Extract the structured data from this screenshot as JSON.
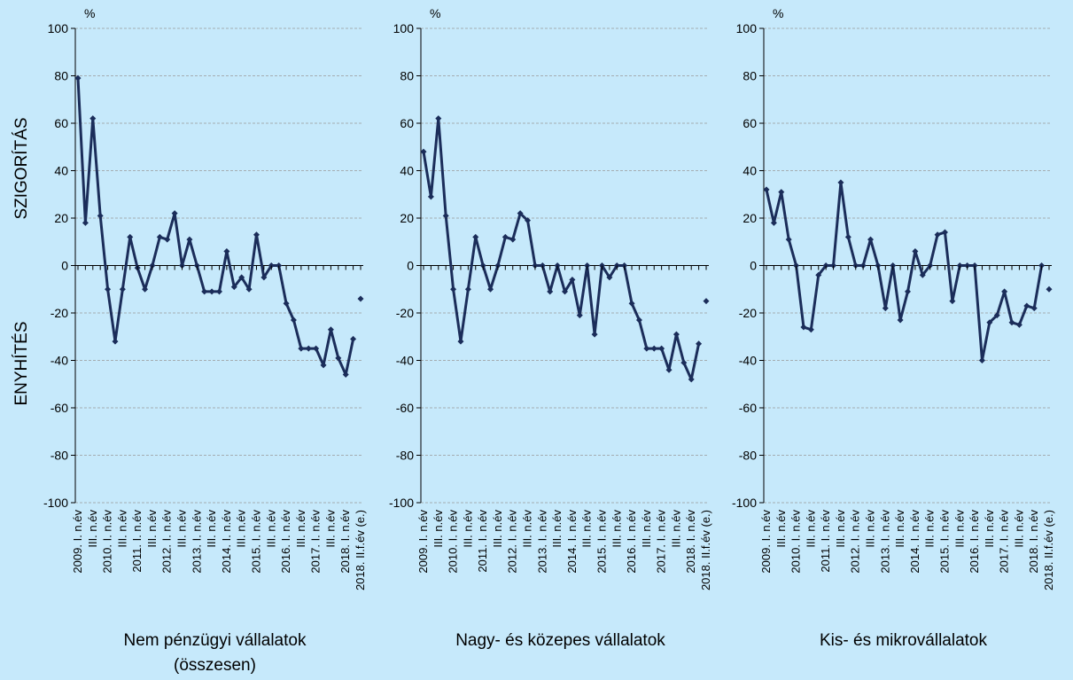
{
  "chart_data": [
    {
      "type": "line",
      "title": [
        "Nem pénzügyi vállalatok",
        "(összesen)"
      ],
      "unit": "%",
      "ylabel_top": "SZIGORÍTÁS",
      "ylabel_bottom": "ENYHÍTÉS",
      "categories": [
        "2009. I. n.év",
        null,
        "III. n.év",
        null,
        "2010. I. n.év",
        null,
        "III. n.év",
        null,
        "2011. I. n.év",
        null,
        "III. n.év",
        null,
        "2012. I. n.év",
        null,
        "III. n.év",
        null,
        "2013. I. n.év",
        null,
        "III. n.év",
        null,
        "2014. I. n.év",
        null,
        "III. n.év",
        null,
        "2015. I. n.év",
        null,
        "III. n.év",
        null,
        "2016. I. n.év",
        null,
        "III. n.év",
        null,
        "2017. I. n.év",
        null,
        "III. n.év",
        null,
        "2018. I. n.év",
        null,
        "2018. II.f.év (e.)"
      ],
      "series": [
        {
          "color": "#1b2d5a",
          "line": true,
          "values": [
            79,
            18,
            62,
            21,
            -10,
            -32,
            -10,
            12,
            -1,
            -10,
            0,
            12,
            11,
            22,
            0,
            11,
            0,
            -11,
            -11,
            -11,
            6,
            -9,
            -5,
            -10,
            13,
            -5,
            0,
            0,
            -16,
            -23,
            -35,
            -35,
            -35,
            -42,
            -27,
            -39,
            -46,
            -31,
            null
          ]
        },
        {
          "color": "#1b2d5a",
          "line": false,
          "values": [
            null,
            null,
            null,
            null,
            null,
            null,
            null,
            null,
            null,
            null,
            null,
            null,
            null,
            null,
            null,
            null,
            null,
            null,
            null,
            null,
            null,
            null,
            null,
            null,
            null,
            null,
            null,
            null,
            null,
            null,
            null,
            null,
            null,
            null,
            null,
            null,
            null,
            null,
            -14
          ]
        }
      ],
      "ylim": [
        -100,
        100
      ],
      "yticks": [
        -100,
        -80,
        -60,
        -40,
        -20,
        0,
        20,
        40,
        60,
        80,
        100
      ],
      "grid": true
    },
    {
      "type": "line",
      "title": [
        "Nagy- és közepes vállalatok"
      ],
      "unit": "%",
      "categories": [
        "2009. I. n.év",
        null,
        "III. n.év",
        null,
        "2010. I. n.év",
        null,
        "III. n.év",
        null,
        "2011. I. n.év",
        null,
        "III. n.év",
        null,
        "2012. I. n.év",
        null,
        "III. n.év",
        null,
        "2013. I. n.év",
        null,
        "III. n.év",
        null,
        "2014. I. n.év",
        null,
        "III. n.év",
        null,
        "2015. I. n.év",
        null,
        "III. n.év",
        null,
        "2016. I. n.év",
        null,
        "III. n.év",
        null,
        "2017. I. n.év",
        null,
        "III. n.év",
        null,
        "2018. I. n.év",
        null,
        "2018. II.f.év (e.)"
      ],
      "series": [
        {
          "color": "#1b2d5a",
          "line": true,
          "values": [
            48,
            29,
            62,
            21,
            -10,
            -32,
            -10,
            12,
            0,
            -10,
            0,
            12,
            11,
            22,
            19,
            0,
            0,
            -11,
            0,
            -11,
            -6,
            -21,
            0,
            -29,
            0,
            -5,
            0,
            0,
            -16,
            -23,
            -35,
            -35,
            -35,
            -44,
            -29,
            -41,
            -48,
            -33,
            null
          ]
        },
        {
          "color": "#1b2d5a",
          "line": false,
          "values": [
            null,
            null,
            null,
            null,
            null,
            null,
            null,
            null,
            null,
            null,
            null,
            null,
            null,
            null,
            null,
            null,
            null,
            null,
            null,
            null,
            null,
            null,
            null,
            null,
            null,
            null,
            null,
            null,
            null,
            null,
            null,
            null,
            null,
            null,
            null,
            null,
            null,
            null,
            -15
          ]
        }
      ],
      "ylim": [
        -100,
        100
      ],
      "yticks": [
        -100,
        -80,
        -60,
        -40,
        -20,
        0,
        20,
        40,
        60,
        80,
        100
      ],
      "grid": true
    },
    {
      "type": "line",
      "title": [
        "Kis- és mikrovállalatok"
      ],
      "unit": "%",
      "categories": [
        "2009. I. n.év",
        null,
        "III. n.év",
        null,
        "2010. I. n.év",
        null,
        "III. n.év",
        null,
        "2011. I. n.év",
        null,
        "III. n.év",
        null,
        "2012. I. n.év",
        null,
        "III. n.év",
        null,
        "2013. I. n.év",
        null,
        "III. n.év",
        null,
        "2014. I. n.év",
        null,
        "III. n.év",
        null,
        "2015. I. n.év",
        null,
        "III. n.év",
        null,
        "2016. I. n.év",
        null,
        "III. n.év",
        null,
        "2017. I. n.év",
        null,
        "III. n.év",
        null,
        "2018. I. n.év",
        null,
        "2018. II.f.év (e.)"
      ],
      "series": [
        {
          "color": "#1b2d5a",
          "line": true,
          "values": [
            32,
            18,
            31,
            11,
            0,
            -26,
            -27,
            -4,
            0,
            0,
            35,
            12,
            0,
            0,
            11,
            0,
            -18,
            0,
            -23,
            -11,
            6,
            -4,
            0,
            13,
            14,
            -15,
            0,
            0,
            0,
            -40,
            -24,
            -21,
            -11,
            -24,
            -25,
            -17,
            -18,
            0,
            null
          ]
        },
        {
          "color": "#1b2d5a",
          "line": false,
          "values": [
            null,
            null,
            null,
            null,
            null,
            null,
            null,
            null,
            null,
            null,
            null,
            null,
            null,
            null,
            null,
            null,
            null,
            null,
            null,
            null,
            null,
            null,
            null,
            null,
            null,
            null,
            null,
            null,
            null,
            null,
            null,
            null,
            null,
            null,
            null,
            null,
            null,
            null,
            -10
          ]
        }
      ],
      "ylim": [
        -100,
        100
      ],
      "yticks": [
        -100,
        -80,
        -60,
        -40,
        -20,
        0,
        20,
        40,
        60,
        80,
        100
      ],
      "grid": true
    }
  ]
}
